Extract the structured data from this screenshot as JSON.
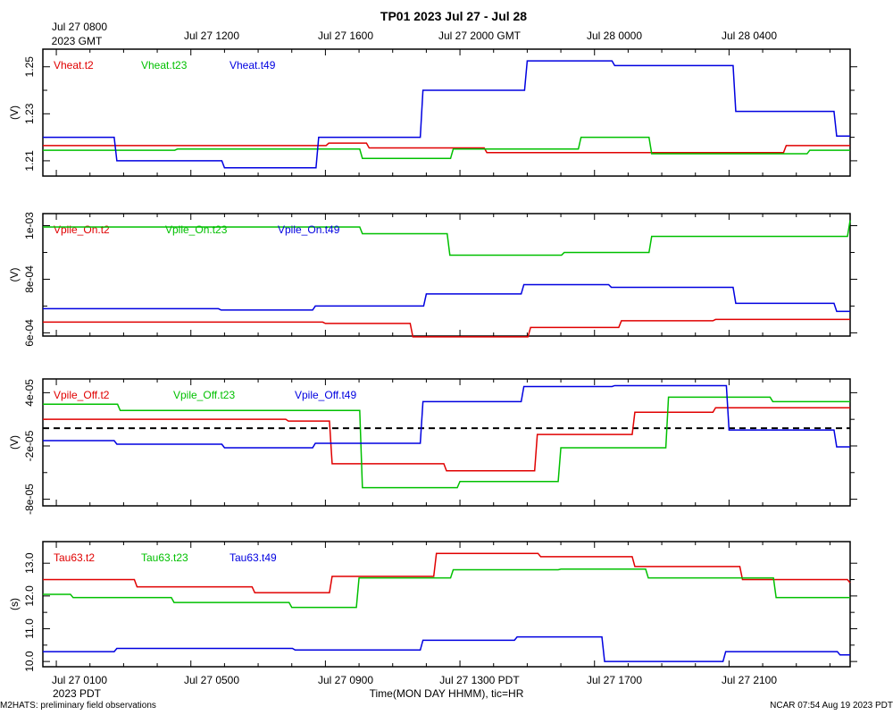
{
  "title": "TP01 2023 Jul 27 - Jul 28",
  "top_axis": {
    "ticks": [
      "Jul 27 0800",
      "Jul 27 1200",
      "Jul 27 1600",
      "Jul 27 2000 GMT",
      "Jul 28 0000",
      "Jul 28 0400"
    ],
    "sub_label": "2023 GMT"
  },
  "bottom_axis": {
    "ticks": [
      "Jul 27 0100",
      "Jul 27 0500",
      "Jul 27 0900",
      "Jul 27 1300 PDT",
      "Jul 27 1700",
      "Jul 27 2100"
    ],
    "sub_label": "2023 PDT",
    "label": "Time(MON DAY HHMM), tic=HR"
  },
  "footer": {
    "left": "M2HATS: preliminary field observations",
    "right": "NCAR 07:54 Aug 19 2023 PDT"
  },
  "colors": {
    "t2": "#e00000",
    "t23": "#00c000",
    "t49": "#0000e0"
  },
  "chart_data": [
    {
      "type": "line",
      "ylabel": "(V)",
      "ylim": [
        1.2035,
        1.2575
      ],
      "y_ticks": [
        1.21,
        1.23,
        1.25
      ],
      "y_tick_labels": [
        "1.21",
        "1.23",
        "1.25"
      ],
      "x_unit": "hours since Jul 27 0000 PDT",
      "xlim": [
        0,
        24
      ],
      "series": [
        {
          "name": "Vheat.t2",
          "color": "#e00000",
          "x": [
            0,
            2.6,
            8.5,
            9.7,
            13.2,
            22.1,
            24
          ],
          "y": [
            1.2165,
            1.2165,
            1.2175,
            1.2155,
            1.2135,
            1.2165,
            1.2165
          ]
        },
        {
          "name": "Vheat.t23",
          "color": "#00c000",
          "x": [
            0,
            4.0,
            7.5,
            9.5,
            12.2,
            16.0,
            18.1,
            22.8,
            24
          ],
          "y": [
            1.2145,
            1.215,
            1.215,
            1.211,
            1.215,
            1.22,
            1.213,
            1.2145,
            1.2145
          ]
        },
        {
          "name": "Vheat.t49",
          "color": "#0000e0",
          "x": [
            0,
            2.2,
            5.4,
            8.2,
            11.3,
            14.4,
            17.0,
            20.6,
            23.6,
            24
          ],
          "y": [
            1.22,
            1.21,
            1.207,
            1.22,
            1.24,
            1.2525,
            1.2505,
            1.231,
            1.2205,
            1.2205
          ]
        }
      ]
    },
    {
      "type": "line",
      "ylabel": "(V)",
      "ylim": [
        0.000588,
        0.001045
      ],
      "y_ticks": [
        0.0006,
        0.0008,
        0.001
      ],
      "y_tick_labels": [
        "6e-04",
        "8e-04",
        "1e-03"
      ],
      "x_unit": "hours since Jul 27 0000 PDT",
      "xlim": [
        0,
        24
      ],
      "series": [
        {
          "name": "Vpile_On.t2",
          "color": "#e00000",
          "x": [
            0,
            4.0,
            8.4,
            11.0,
            14.5,
            17.2,
            20.0,
            24
          ],
          "y": [
            0.00064,
            0.00064,
            0.000635,
            0.000585,
            0.00062,
            0.000645,
            0.00065,
            0.00065
          ]
        },
        {
          "name": "Vpile_On.t23",
          "color": "#00c000",
          "x": [
            0,
            7.5,
            9.5,
            12.1,
            15.5,
            18.1,
            24
          ],
          "y": [
            0.000995,
            0.000995,
            0.00097,
            0.00089,
            0.0009,
            0.00096,
            0.00102
          ]
        },
        {
          "name": "Vpile_On.t49",
          "color": "#0000e0",
          "x": [
            0,
            2.5,
            5.3,
            8.1,
            11.4,
            14.3,
            16.9,
            20.6,
            23.6,
            24
          ],
          "y": [
            0.00069,
            0.00069,
            0.000685,
            0.0007,
            0.000745,
            0.00078,
            0.00077,
            0.00071,
            0.00068,
            0.00068
          ]
        }
      ]
    },
    {
      "type": "line",
      "ylabel": "(V)",
      "ylim": [
        -8.75e-05,
        5.55e-05
      ],
      "y_ticks": [
        -8e-05,
        -2e-05,
        4e-05
      ],
      "y_tick_labels": [
        "-8e-05",
        "-2e-05",
        "4e-05"
      ],
      "zero_line": 0,
      "x_unit": "hours since Jul 27 0000 PDT",
      "xlim": [
        0,
        24
      ],
      "series": [
        {
          "name": "Vpile_Off.t2",
          "color": "#e00000",
          "x": [
            0,
            3.7,
            7.3,
            8.6,
            12.0,
            14.7,
            17.6,
            20.0,
            24
          ],
          "y": [
            1e-05,
            1e-05,
            8e-06,
            -4e-05,
            -4.8e-05,
            -7e-06,
            1.8e-05,
            2.3e-05,
            2.3e-05
          ]
        },
        {
          "name": "Vpile_Off.t23",
          "color": "#00c000",
          "x": [
            0,
            2.3,
            6.9,
            9.5,
            12.4,
            15.4,
            18.6,
            21.7,
            24
          ],
          "y": [
            2.7e-05,
            2e-05,
            2e-05,
            -6.7e-05,
            -6e-05,
            -2.2e-05,
            3.5e-05,
            3e-05,
            3e-05
          ]
        },
        {
          "name": "Vpile_Off.t49",
          "color": "#0000e0",
          "x": [
            0,
            2.2,
            5.4,
            8.1,
            11.3,
            14.3,
            17.0,
            20.4,
            23.6,
            24
          ],
          "y": [
            -1.4e-05,
            -1.8e-05,
            -2.2e-05,
            -1.7e-05,
            3e-05,
            4.7e-05,
            4.8e-05,
            -2e-06,
            -2.1e-05,
            -2.1e-05
          ]
        }
      ]
    },
    {
      "type": "line",
      "ylabel": "(s)",
      "ylim": [
        9.84,
        13.66
      ],
      "y_ticks": [
        10.0,
        11.0,
        12.0,
        13.0
      ],
      "y_tick_labels": [
        "10.0",
        "11.0",
        "12.0",
        "13.0"
      ],
      "x_unit": "hours since Jul 27 0000 PDT",
      "xlim": [
        0,
        24
      ],
      "series": [
        {
          "name": "Tau63.t2",
          "color": "#e00000",
          "x": [
            0,
            2.8,
            6.3,
            8.6,
            11.7,
            14.8,
            17.6,
            20.8,
            24
          ],
          "y": [
            12.5,
            12.28,
            12.1,
            12.6,
            13.3,
            13.2,
            12.9,
            12.5,
            12.4
          ]
        },
        {
          "name": "Tau63.t23",
          "color": "#00c000",
          "x": [
            0,
            0.9,
            3.9,
            7.4,
            9.4,
            12.2,
            15.4,
            18.0,
            21.8,
            24
          ],
          "y": [
            12.05,
            11.95,
            11.8,
            11.65,
            12.55,
            12.8,
            12.82,
            12.55,
            11.95,
            11.95
          ]
        },
        {
          "name": "Tau63.t49",
          "color": "#0000e0",
          "x": [
            0,
            2.2,
            7.5,
            11.3,
            14.1,
            16.7,
            20.3,
            23.7,
            24
          ],
          "y": [
            10.3,
            10.4,
            10.35,
            10.65,
            10.75,
            10.0,
            10.3,
            10.2,
            10.2
          ]
        }
      ]
    }
  ]
}
